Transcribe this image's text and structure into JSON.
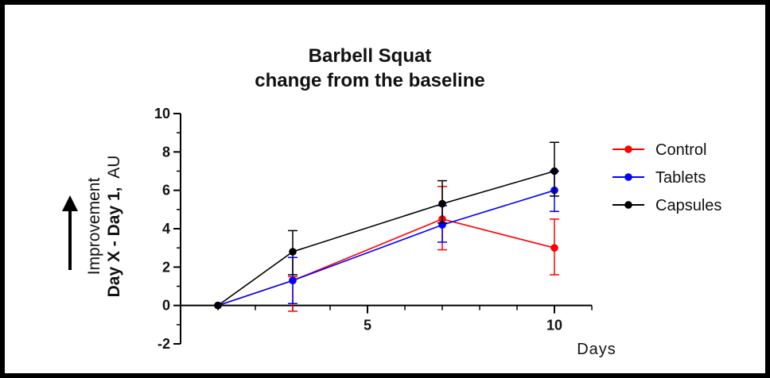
{
  "chart_data": {
    "type": "line",
    "title_line1": "Barbell Squat",
    "title_line2": "change from the baseline",
    "xlabel": "Days",
    "ylabel_top": "Improvement",
    "ylabel_bold": "Day X - Day 1,",
    "ylabel_unit": "AU",
    "xlim": [
      0,
      11
    ],
    "ylim": [
      -2,
      10
    ],
    "x_ticks": [
      5,
      10
    ],
    "y_ticks": [
      -2,
      0,
      2,
      4,
      6,
      8,
      10
    ],
    "grid": false,
    "legend_position": "right",
    "series": [
      {
        "name": "Control",
        "color": "#ff0000",
        "x": [
          1,
          3,
          7,
          10
        ],
        "y": [
          0,
          1.3,
          4.5,
          3.0
        ],
        "err_upper": [
          0,
          1.5,
          6.2,
          4.5
        ],
        "err_lower": [
          0,
          -0.3,
          2.9,
          1.6
        ]
      },
      {
        "name": "Tablets",
        "color": "#0000ff",
        "x": [
          1,
          3,
          7,
          10
        ],
        "y": [
          0,
          1.3,
          4.2,
          6.0
        ],
        "err_upper": [
          0,
          2.5,
          5.2,
          7.0
        ],
        "err_lower": [
          0,
          0.1,
          3.3,
          4.9
        ]
      },
      {
        "name": "Capsules",
        "color": "#000000",
        "x": [
          1,
          3,
          7,
          10
        ],
        "y": [
          0,
          2.8,
          5.3,
          7.0
        ],
        "err_upper": [
          0,
          3.9,
          6.5,
          8.5
        ],
        "err_lower": [
          0,
          1.6,
          4.3,
          5.7
        ]
      }
    ]
  }
}
